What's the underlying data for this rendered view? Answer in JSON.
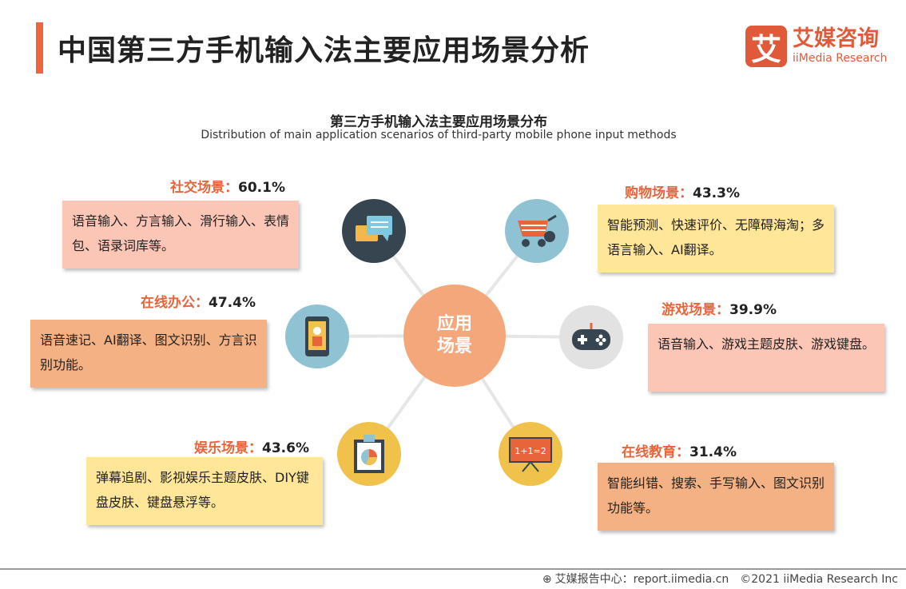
{
  "header": {
    "title": "中国第三方手机输入法主要应用场景分析",
    "logo_mark": "艾",
    "logo_cn": "艾媒咨询",
    "logo_en": "iiMedia Research"
  },
  "subtitle": {
    "cn": "第三方手机输入法主要应用场景分布",
    "en": "Distribution of main application scenarios of third-party mobile phone input methods"
  },
  "center": {
    "line1": "应用",
    "line2": "场景"
  },
  "colors": {
    "accent": "#f0643c",
    "center": "#f4a77a",
    "pink": "#fcc6b6",
    "peach": "#f4b183",
    "yellow": "#ffe699"
  },
  "scenarios": [
    {
      "name": "社交场景：",
      "value": "60.1%",
      "desc": "语音输入、方言输入、滑行输入、表情包、语录词库等。",
      "icon": "chat-bubbles-icon"
    },
    {
      "name": "在线办公：",
      "value": "47.4%",
      "desc": "语音速记、AI翻译、图文识别、方言识别功能。",
      "icon": "smartphone-icon"
    },
    {
      "name": "娱乐场景：",
      "value": "43.6%",
      "desc": "弹幕追剧、影视娱乐主题皮肤、DIY键盘皮肤、键盘悬浮等。",
      "icon": "pie-chart-board-icon"
    },
    {
      "name": "购物场景：",
      "value": "43.3%",
      "desc": "智能预测、快速评价、无障碍海淘；多语言输入、AI翻译。",
      "icon": "shopping-cart-icon"
    },
    {
      "name": "游戏场景：",
      "value": "39.9%",
      "desc": "语音输入、游戏主题皮肤、游戏键盘。",
      "icon": "gamepad-icon"
    },
    {
      "name": "在线教育：",
      "value": "31.4%",
      "desc": "智能纠错、搜索、手写输入、图文识别功能等。",
      "icon": "blackboard-icon"
    }
  ],
  "footer": {
    "source": "艾媒报告中心：report.iimedia.cn",
    "copyright": "©2021  iiMedia Research  Inc"
  }
}
